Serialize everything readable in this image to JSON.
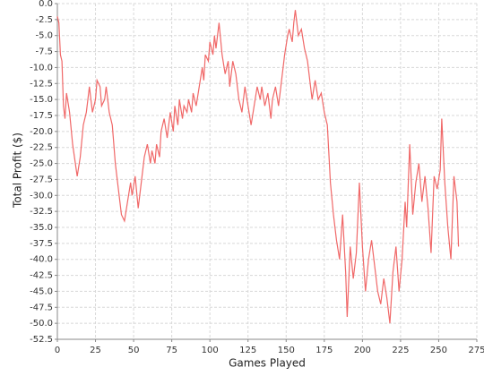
{
  "chart_data": {
    "type": "line",
    "x_label": "Games Played",
    "y_label": "Total Profit ($)",
    "xlim": [
      0,
      275
    ],
    "ylim": [
      -52.5,
      0
    ],
    "xticks": [
      0,
      25,
      50,
      75,
      100,
      125,
      150,
      175,
      200,
      225,
      250,
      275
    ],
    "yticks": [
      {
        "value": 0,
        "label": "0.0"
      },
      -2.5,
      {
        "value": -5,
        "label": "-5.0"
      },
      -7.5,
      {
        "value": -10,
        "label": "-10.0"
      },
      -12.5,
      {
        "value": -15,
        "label": "-15.0"
      },
      -17.5,
      {
        "value": -20,
        "label": "-20.0"
      },
      -22.5,
      {
        "value": -25,
        "label": "-25.0"
      },
      -27.5,
      {
        "value": -30,
        "label": "-30.0"
      },
      -32.5,
      {
        "value": -35,
        "label": "-35.0"
      },
      -37.5,
      {
        "value": -40,
        "label": "-40.0"
      },
      -42.5,
      {
        "value": -45,
        "label": "-45.0"
      },
      -47.5,
      {
        "value": -50,
        "label": "-50.0"
      },
      -52.5
    ],
    "grid": true,
    "color": "#f06868",
    "x": [
      0,
      1,
      2,
      3,
      4,
      5,
      6,
      8,
      10,
      13,
      15,
      17,
      19,
      21,
      23,
      25,
      26,
      28,
      29,
      31,
      32,
      34,
      36,
      38,
      40,
      42,
      44,
      46,
      48,
      49,
      51,
      53,
      55,
      57,
      59,
      61,
      62,
      64,
      65,
      67,
      68,
      70,
      72,
      74,
      76,
      77,
      79,
      80,
      82,
      83,
      85,
      86,
      88,
      89,
      91,
      93,
      95,
      96,
      97,
      99,
      100,
      102,
      103,
      104,
      106,
      108,
      110,
      112,
      113,
      115,
      117,
      119,
      121,
      123,
      125,
      127,
      129,
      131,
      133,
      134,
      136,
      138,
      140,
      141,
      143,
      145,
      147,
      149,
      151,
      152,
      154,
      155,
      156,
      158,
      160,
      162,
      164,
      166,
      167,
      169,
      171,
      173,
      175,
      177,
      179,
      181,
      183,
      185,
      187,
      189,
      190,
      192,
      194,
      196,
      198,
      200,
      202,
      204,
      206,
      208,
      210,
      212,
      214,
      216,
      218,
      220,
      222,
      224,
      226,
      228,
      229,
      231,
      233,
      235,
      237,
      239,
      241,
      243,
      245,
      247,
      249,
      251,
      252,
      254,
      256,
      258,
      260,
      262,
      263
    ],
    "values": [
      -2,
      -3,
      -8,
      -9,
      -16,
      -18,
      -14,
      -17,
      -22,
      -27,
      -24,
      -19,
      -17,
      -13,
      -17,
      -15,
      -12,
      -13,
      -16,
      -15,
      -13,
      -17,
      -19,
      -25,
      -29,
      -33,
      -34,
      -31,
      -28,
      -30,
      -27,
      -32,
      -28,
      -24,
      -22,
      -25,
      -23,
      -25,
      -22,
      -24,
      -20,
      -18,
      -21,
      -17,
      -20,
      -16,
      -19,
      -15,
      -18,
      -16,
      -17,
      -15,
      -17,
      -14,
      -16,
      -13,
      -10,
      -12,
      -8,
      -9,
      -6,
      -8,
      -5,
      -7,
      -3,
      -8,
      -11,
      -9,
      -13,
      -9,
      -11,
      -15,
      -17,
      -13,
      -16,
      -19,
      -16,
      -13,
      -15,
      -13,
      -16,
      -14,
      -18,
      -15,
      -13,
      -16,
      -12,
      -8,
      -5,
      -4,
      -6,
      -3,
      -1,
      -5,
      -4,
      -7,
      -9,
      -13,
      -15,
      -12,
      -15,
      -14,
      -17,
      -19,
      -28,
      -33,
      -37,
      -40,
      -33,
      -42,
      -49,
      -38,
      -43,
      -39,
      -28,
      -38,
      -45,
      -40,
      -37,
      -41,
      -45,
      -47,
      -43,
      -46,
      -50,
      -42,
      -38,
      -45,
      -40,
      -31,
      -35,
      -22,
      -33,
      -28,
      -25,
      -31,
      -27,
      -32,
      -39,
      -27,
      -29,
      -26,
      -18,
      -28,
      -35,
      -40,
      -27,
      -31,
      -38
    ]
  }
}
